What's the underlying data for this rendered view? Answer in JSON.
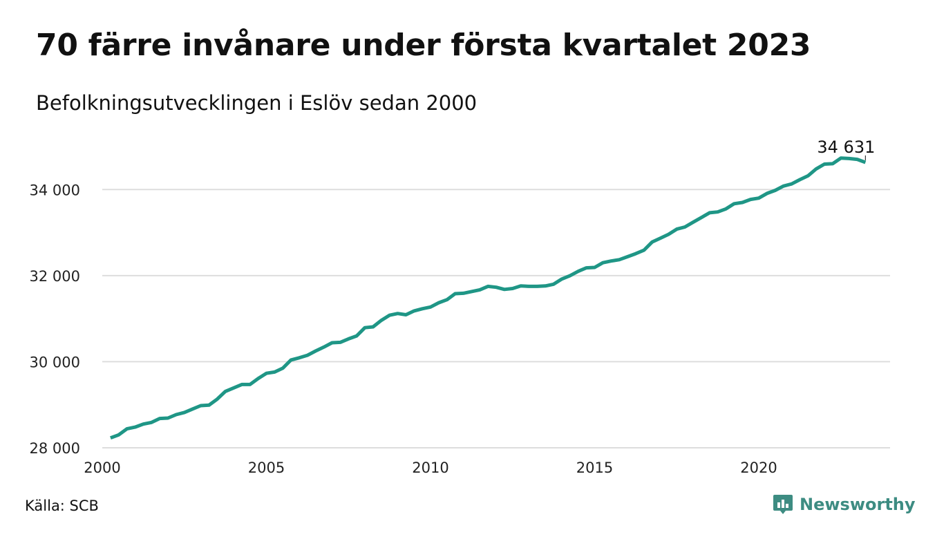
{
  "title": "70 färre invånare under första kvartalet 2023",
  "subtitle": "Befolkningsutvecklingen i Eslöv sedan 2000",
  "source": "Källa: SCB",
  "brand": {
    "name": "Newsworthy",
    "icon": "newsworthy-logo-icon",
    "color": "#3d8c82"
  },
  "chart_data": {
    "type": "line",
    "title": "70 färre invånare under första kvartalet 2023",
    "subtitle": "Befolkningsutvecklingen i Eslöv sedan 2000",
    "xlabel": "",
    "ylabel": "",
    "xlim": [
      2000,
      2024
    ],
    "ylim": [
      28000,
      35000
    ],
    "x_ticks": [
      2000,
      2005,
      2010,
      2015,
      2020
    ],
    "x_tick_labels": [
      "2000",
      "2005",
      "2010",
      "2015",
      "2020"
    ],
    "y_ticks": [
      28000,
      30000,
      32000,
      34000
    ],
    "y_tick_labels": [
      "28 000",
      "30 000",
      "32 000",
      "34 000"
    ],
    "grid": "horizontal",
    "line_color": "#1f9686",
    "end_label": "34 631",
    "series": [
      {
        "values": [
          [
            2000.25,
            28230
          ],
          [
            2000.5,
            28300
          ],
          [
            2000.75,
            28440
          ],
          [
            2001.0,
            28480
          ],
          [
            2001.25,
            28550
          ],
          [
            2001.5,
            28590
          ],
          [
            2001.75,
            28680
          ],
          [
            2002.0,
            28690
          ],
          [
            2002.25,
            28770
          ],
          [
            2002.5,
            28820
          ],
          [
            2002.75,
            28900
          ],
          [
            2003.0,
            28980
          ],
          [
            2003.25,
            28990
          ],
          [
            2003.5,
            29130
          ],
          [
            2003.75,
            29310
          ],
          [
            2004.0,
            29390
          ],
          [
            2004.25,
            29470
          ],
          [
            2004.5,
            29470
          ],
          [
            2004.75,
            29610
          ],
          [
            2005.0,
            29730
          ],
          [
            2005.25,
            29760
          ],
          [
            2005.5,
            29850
          ],
          [
            2005.75,
            30040
          ],
          [
            2006.0,
            30090
          ],
          [
            2006.25,
            30150
          ],
          [
            2006.5,
            30250
          ],
          [
            2006.75,
            30340
          ],
          [
            2007.0,
            30440
          ],
          [
            2007.25,
            30450
          ],
          [
            2007.5,
            30530
          ],
          [
            2007.75,
            30600
          ],
          [
            2008.0,
            30790
          ],
          [
            2008.25,
            30810
          ],
          [
            2008.5,
            30960
          ],
          [
            2008.75,
            31080
          ],
          [
            2009.0,
            31120
          ],
          [
            2009.25,
            31090
          ],
          [
            2009.5,
            31180
          ],
          [
            2009.75,
            31230
          ],
          [
            2010.0,
            31270
          ],
          [
            2010.25,
            31370
          ],
          [
            2010.5,
            31440
          ],
          [
            2010.75,
            31580
          ],
          [
            2011.0,
            31590
          ],
          [
            2011.25,
            31630
          ],
          [
            2011.5,
            31670
          ],
          [
            2011.75,
            31750
          ],
          [
            2012.0,
            31730
          ],
          [
            2012.25,
            31680
          ],
          [
            2012.5,
            31700
          ],
          [
            2012.75,
            31760
          ],
          [
            2013.0,
            31750
          ],
          [
            2013.25,
            31750
          ],
          [
            2013.5,
            31760
          ],
          [
            2013.75,
            31800
          ],
          [
            2014.0,
            31920
          ],
          [
            2014.25,
            32000
          ],
          [
            2014.5,
            32100
          ],
          [
            2014.75,
            32180
          ],
          [
            2015.0,
            32190
          ],
          [
            2015.25,
            32300
          ],
          [
            2015.5,
            32340
          ],
          [
            2015.75,
            32370
          ],
          [
            2016.0,
            32440
          ],
          [
            2016.25,
            32510
          ],
          [
            2016.5,
            32590
          ],
          [
            2016.75,
            32780
          ],
          [
            2017.0,
            32870
          ],
          [
            2017.25,
            32960
          ],
          [
            2017.5,
            33080
          ],
          [
            2017.75,
            33130
          ],
          [
            2018.0,
            33240
          ],
          [
            2018.25,
            33350
          ],
          [
            2018.5,
            33460
          ],
          [
            2018.75,
            33480
          ],
          [
            2019.0,
            33550
          ],
          [
            2019.25,
            33670
          ],
          [
            2019.5,
            33700
          ],
          [
            2019.75,
            33770
          ],
          [
            2020.0,
            33800
          ],
          [
            2020.25,
            33910
          ],
          [
            2020.5,
            33980
          ],
          [
            2020.75,
            34080
          ],
          [
            2021.0,
            34130
          ],
          [
            2021.25,
            34230
          ],
          [
            2021.5,
            34320
          ],
          [
            2021.75,
            34480
          ],
          [
            2022.0,
            34590
          ],
          [
            2022.25,
            34600
          ],
          [
            2022.5,
            34730
          ],
          [
            2022.75,
            34720
          ],
          [
            2023.0,
            34701
          ],
          [
            2023.25,
            34631
          ]
        ]
      }
    ]
  }
}
